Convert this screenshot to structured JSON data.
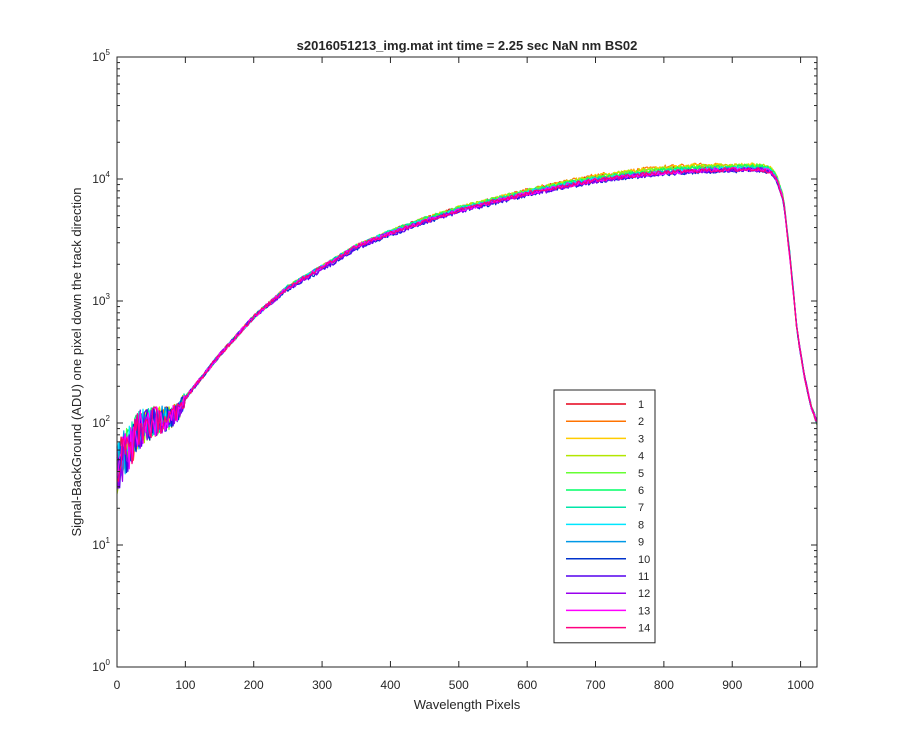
{
  "chart_data": {
    "type": "line",
    "title": "s2016051213_img.mat int time = 2.25 sec  NaN nm BS02",
    "xlabel": "Wavelength Pixels",
    "ylabel": "Signal-BackGround (ADU) one pixel down the track direction",
    "xlim": [
      0,
      1024
    ],
    "ylim": [
      1,
      100000
    ],
    "yscale": "log",
    "x_ticks": [
      "0",
      "100",
      "200",
      "300",
      "400",
      "500",
      "600",
      "700",
      "800",
      "900",
      "1000"
    ],
    "y_ticks": [
      {
        "base": "10",
        "exp": "0"
      },
      {
        "base": "10",
        "exp": "1"
      },
      {
        "base": "10",
        "exp": "2"
      },
      {
        "base": "10",
        "exp": "3"
      },
      {
        "base": "10",
        "exp": "4"
      },
      {
        "base": "10",
        "exp": "5"
      }
    ],
    "grid": false,
    "legend_position": "lower-right inside",
    "x": [
      0,
      10,
      20,
      30,
      40,
      50,
      60,
      70,
      80,
      90,
      100,
      150,
      200,
      250,
      300,
      350,
      400,
      450,
      500,
      550,
      600,
      650,
      700,
      750,
      800,
      850,
      900,
      940,
      955,
      965,
      975,
      985,
      995,
      1005,
      1015,
      1024
    ],
    "series": [
      {
        "name": "1",
        "color": "#e6001a",
        "values": [
          40,
          55,
          65,
          85,
          95,
          100,
          105,
          108,
          112,
          125,
          160,
          360,
          740,
          1300,
          1900,
          2800,
          3700,
          4700,
          5800,
          6800,
          8000,
          9200,
          10400,
          11300,
          12000,
          12400,
          12500,
          12500,
          12000,
          10300,
          6800,
          2200,
          560,
          250,
          140,
          100
        ]
      },
      {
        "name": "2",
        "color": "#ff7300",
        "values": [
          40,
          55,
          65,
          85,
          95,
          100,
          105,
          108,
          112,
          125,
          160,
          360,
          740,
          1300,
          1900,
          2800,
          3700,
          4700,
          5800,
          6800,
          8100,
          9300,
          10700,
          11600,
          12500,
          13000,
          12900,
          12900,
          12300,
          10500,
          6900,
          2200,
          560,
          250,
          140,
          100
        ]
      },
      {
        "name": "3",
        "color": "#ffcc00",
        "values": [
          40,
          55,
          65,
          85,
          95,
          100,
          105,
          108,
          112,
          125,
          160,
          360,
          740,
          1300,
          1900,
          2800,
          3700,
          4700,
          5800,
          6800,
          8000,
          9200,
          10600,
          11500,
          12400,
          12900,
          13000,
          13000,
          12400,
          10600,
          7000,
          2200,
          560,
          250,
          140,
          100
        ]
      },
      {
        "name": "4",
        "color": "#b3e600",
        "values": [
          40,
          55,
          65,
          85,
          95,
          100,
          105,
          108,
          112,
          125,
          160,
          360,
          740,
          1300,
          1900,
          2800,
          3700,
          4700,
          5800,
          6800,
          8000,
          9200,
          10500,
          11400,
          12200,
          12700,
          13000,
          13100,
          12500,
          10700,
          7000,
          2200,
          560,
          250,
          140,
          100
        ]
      },
      {
        "name": "5",
        "color": "#66ff33",
        "values": [
          40,
          55,
          65,
          85,
          95,
          100,
          105,
          108,
          112,
          125,
          160,
          360,
          740,
          1300,
          1900,
          2800,
          3700,
          4700,
          5800,
          6800,
          8000,
          9100,
          10300,
          11200,
          12000,
          12500,
          12700,
          12900,
          12400,
          10600,
          7000,
          2200,
          560,
          250,
          140,
          100
        ]
      },
      {
        "name": "6",
        "color": "#00ff66",
        "values": [
          40,
          55,
          65,
          85,
          95,
          100,
          105,
          108,
          112,
          125,
          160,
          360,
          740,
          1300,
          1900,
          2800,
          3700,
          4700,
          5700,
          6700,
          7900,
          9000,
          10200,
          11000,
          11800,
          12300,
          12500,
          12700,
          12200,
          10400,
          6900,
          2200,
          560,
          250,
          140,
          100
        ]
      },
      {
        "name": "7",
        "color": "#00e6a8",
        "values": [
          40,
          55,
          65,
          85,
          95,
          100,
          105,
          108,
          112,
          125,
          160,
          360,
          740,
          1300,
          1900,
          2800,
          3700,
          4600,
          5700,
          6700,
          7800,
          8900,
          10000,
          10800,
          11600,
          12100,
          12300,
          12400,
          12000,
          10300,
          6800,
          2200,
          560,
          250,
          140,
          100
        ]
      },
      {
        "name": "8",
        "color": "#00e6ff",
        "values": [
          40,
          55,
          65,
          85,
          95,
          100,
          105,
          108,
          112,
          125,
          160,
          360,
          740,
          1300,
          1900,
          2800,
          3700,
          4600,
          5600,
          6600,
          7700,
          8800,
          9900,
          10700,
          11400,
          11900,
          12100,
          12200,
          11800,
          10100,
          6700,
          2200,
          560,
          250,
          140,
          100
        ]
      },
      {
        "name": "9",
        "color": "#0099e6",
        "values": [
          40,
          55,
          65,
          85,
          95,
          100,
          105,
          108,
          112,
          125,
          160,
          360,
          740,
          1300,
          1900,
          2800,
          3600,
          4500,
          5500,
          6500,
          7600,
          8600,
          9700,
          10500,
          11200,
          11700,
          11900,
          12000,
          11600,
          9900,
          6600,
          2200,
          560,
          250,
          140,
          100
        ]
      },
      {
        "name": "10",
        "color": "#0033cc",
        "values": [
          40,
          55,
          65,
          85,
          95,
          100,
          105,
          108,
          112,
          125,
          160,
          360,
          740,
          1250,
          1800,
          2700,
          3500,
          4400,
          5400,
          6300,
          7400,
          8500,
          9500,
          10300,
          11000,
          11500,
          11700,
          11800,
          11400,
          9800,
          6500,
          2100,
          560,
          250,
          140,
          100
        ]
      },
      {
        "name": "11",
        "color": "#5500ee",
        "values": [
          40,
          55,
          65,
          85,
          95,
          100,
          105,
          108,
          112,
          125,
          160,
          360,
          740,
          1250,
          1800,
          2700,
          3500,
          4400,
          5400,
          6400,
          7400,
          8500,
          9600,
          10400,
          11100,
          11600,
          11800,
          11900,
          11500,
          9800,
          6500,
          2100,
          560,
          250,
          140,
          100
        ]
      },
      {
        "name": "12",
        "color": "#9900ee",
        "values": [
          40,
          55,
          65,
          85,
          95,
          100,
          105,
          108,
          112,
          125,
          160,
          360,
          740,
          1250,
          1850,
          2750,
          3600,
          4500,
          5500,
          6500,
          7500,
          8600,
          9700,
          10500,
          11200,
          11700,
          11900,
          12000,
          11600,
          9900,
          6600,
          2100,
          560,
          250,
          140,
          100
        ]
      },
      {
        "name": "13",
        "color": "#ff00ff",
        "values": [
          40,
          55,
          65,
          85,
          95,
          100,
          105,
          108,
          112,
          125,
          160,
          360,
          740,
          1300,
          1900,
          2800,
          3600,
          4500,
          5500,
          6500,
          7600,
          8700,
          9800,
          10600,
          11300,
          11800,
          12000,
          12100,
          11700,
          10000,
          6600,
          2100,
          560,
          250,
          140,
          100
        ]
      },
      {
        "name": "14",
        "color": "#ff0080",
        "values": [
          40,
          55,
          65,
          85,
          95,
          100,
          105,
          108,
          112,
          125,
          160,
          360,
          740,
          1300,
          1900,
          2800,
          3600,
          4500,
          5500,
          6500,
          7600,
          8700,
          9800,
          10600,
          11300,
          11700,
          11900,
          12000,
          11600,
          9900,
          6600,
          2100,
          560,
          250,
          140,
          100
        ]
      }
    ]
  }
}
